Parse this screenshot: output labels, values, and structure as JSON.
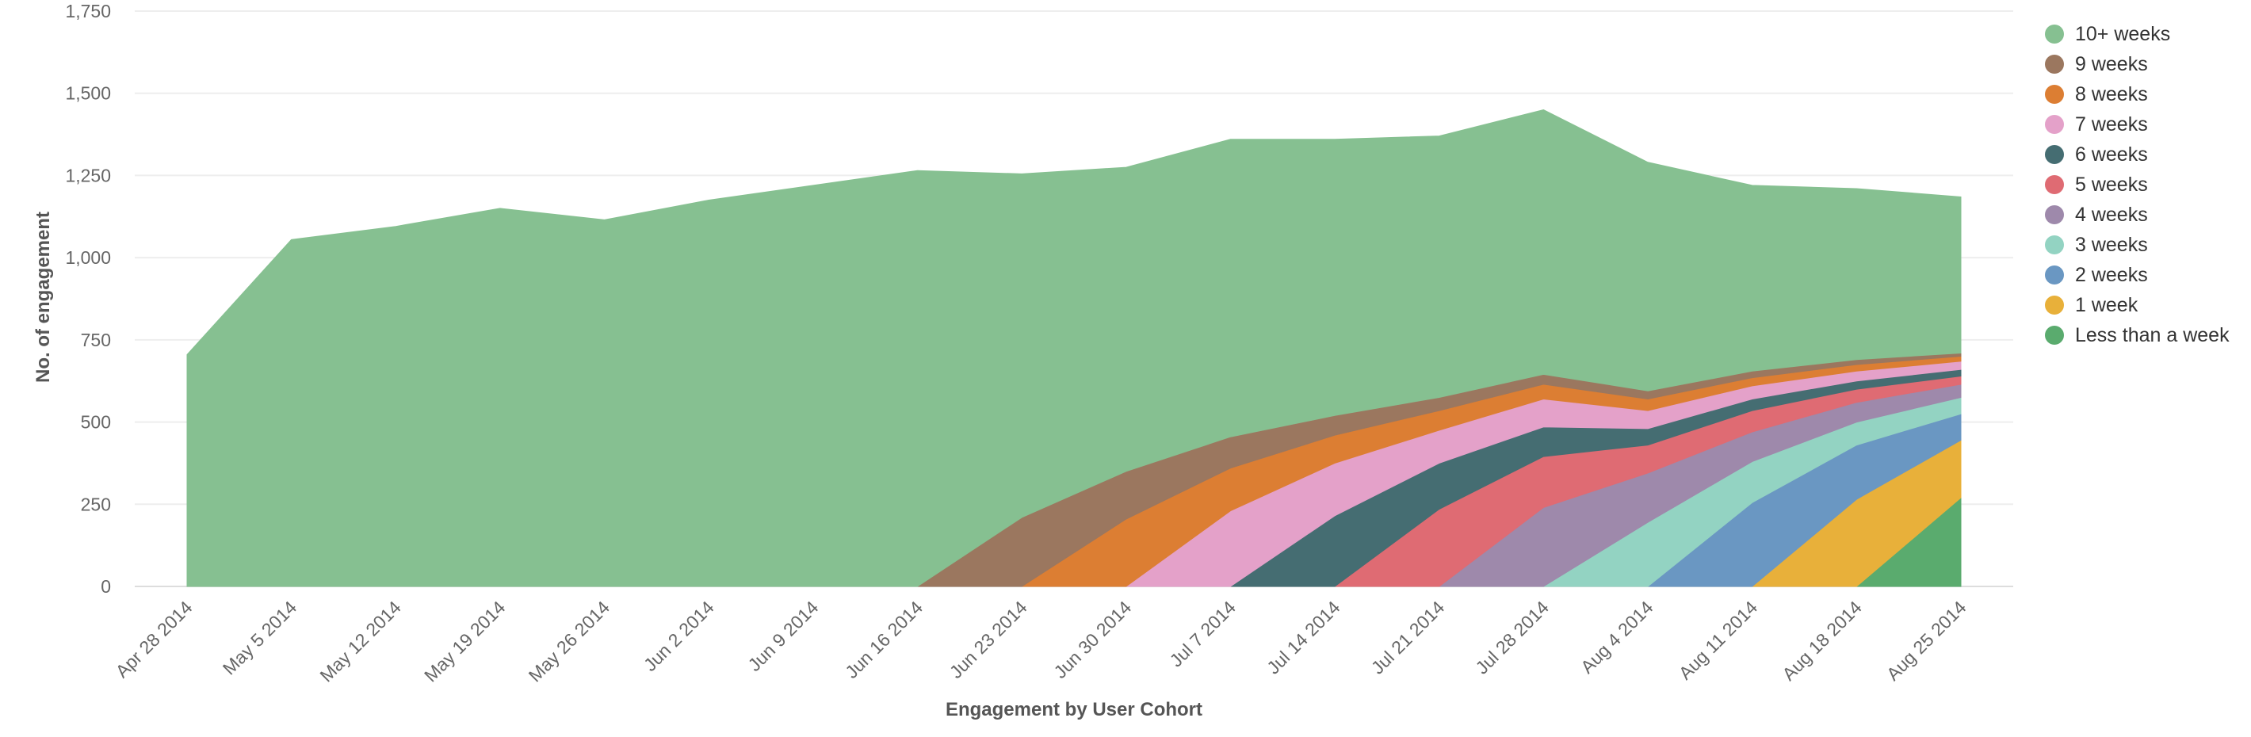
{
  "chart_data": {
    "type": "area",
    "stacked": true,
    "title": "",
    "xlabel": "Engagement by User Cohort",
    "ylabel": "No. of engagement",
    "ylim": [
      0,
      1750
    ],
    "yticks": [
      0,
      250,
      500,
      750,
      1000,
      1250,
      1500,
      1750
    ],
    "ytick_labels": [
      "0",
      "250",
      "500",
      "750",
      "1,000",
      "1,250",
      "1,500",
      "1,750"
    ],
    "grid": true,
    "legend_position": "right",
    "categories": [
      "Apr 28 2014",
      "May 5 2014",
      "May 12 2014",
      "May 19 2014",
      "May 26 2014",
      "Jun 2 2014",
      "Jun 9 2014",
      "Jun 16 2014",
      "Jun 23 2014",
      "Jun 30 2014",
      "Jul 7 2014",
      "Jul 14 2014",
      "Jul 21 2014",
      "Jul 28 2014",
      "Aug 4 2014",
      "Aug 11 2014",
      "Aug 18 2014",
      "Aug 25 2014"
    ],
    "series": [
      {
        "name": "Less than a week",
        "color": "#5aab6e",
        "values": [
          0,
          0,
          0,
          0,
          0,
          0,
          0,
          0,
          0,
          0,
          0,
          0,
          0,
          0,
          0,
          0,
          0,
          270
        ]
      },
      {
        "name": "1 week",
        "color": "#e8b03a",
        "values": [
          0,
          0,
          0,
          0,
          0,
          0,
          0,
          0,
          0,
          0,
          0,
          0,
          0,
          0,
          0,
          0,
          265,
          175
        ]
      },
      {
        "name": "2 weeks",
        "color": "#6a97c2",
        "values": [
          0,
          0,
          0,
          0,
          0,
          0,
          0,
          0,
          0,
          0,
          0,
          0,
          0,
          0,
          0,
          255,
          165,
          80
        ]
      },
      {
        "name": "3 weeks",
        "color": "#93d3c2",
        "values": [
          0,
          0,
          0,
          0,
          0,
          0,
          0,
          0,
          0,
          0,
          0,
          0,
          0,
          0,
          195,
          125,
          70,
          50
        ]
      },
      {
        "name": "4 weeks",
        "color": "#9e89ab",
        "values": [
          0,
          0,
          0,
          0,
          0,
          0,
          0,
          0,
          0,
          0,
          0,
          0,
          0,
          240,
          150,
          90,
          60,
          40
        ]
      },
      {
        "name": "5 weeks",
        "color": "#df6b73",
        "values": [
          0,
          0,
          0,
          0,
          0,
          0,
          0,
          0,
          0,
          0,
          0,
          0,
          235,
          155,
          85,
          65,
          40,
          25
        ]
      },
      {
        "name": "6 weeks",
        "color": "#456d72",
        "values": [
          0,
          0,
          0,
          0,
          0,
          0,
          0,
          0,
          0,
          0,
          0,
          215,
          140,
          90,
          50,
          35,
          25,
          20
        ]
      },
      {
        "name": "7 weeks",
        "color": "#e4a1c9",
        "values": [
          0,
          0,
          0,
          0,
          0,
          0,
          0,
          0,
          0,
          0,
          230,
          160,
          100,
          85,
          55,
          40,
          30,
          25
        ]
      },
      {
        "name": "8 weeks",
        "color": "#dc7e33",
        "values": [
          0,
          0,
          0,
          0,
          0,
          0,
          0,
          0,
          0,
          205,
          130,
          85,
          60,
          45,
          35,
          25,
          20,
          15
        ]
      },
      {
        "name": "9 weeks",
        "color": "#9b775f",
        "values": [
          0,
          0,
          0,
          0,
          0,
          0,
          0,
          0,
          210,
          145,
          95,
          60,
          40,
          30,
          25,
          20,
          15,
          10
        ]
      },
      {
        "name": "10+ weeks",
        "color": "#86c091",
        "values": [
          705,
          1055,
          1095,
          1150,
          1115,
          1175,
          1220,
          1265,
          1045,
          925,
          905,
          840,
          795,
          805,
          695,
          565,
          520,
          475
        ]
      }
    ]
  }
}
